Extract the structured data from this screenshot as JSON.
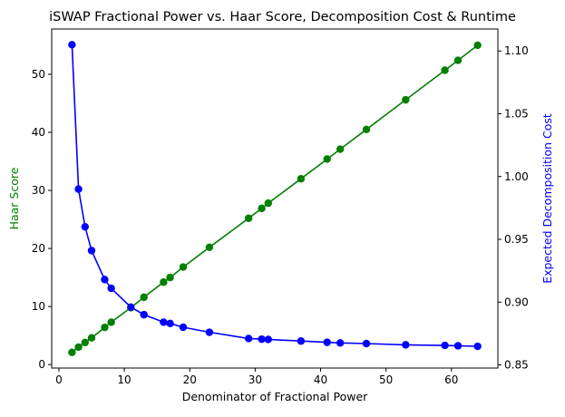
{
  "chart_data": {
    "type": "line",
    "title": "iSWAP Fractional Power vs. Haar Score, Decomposition Cost & Runtime",
    "xlabel": "Denominator of Fractional Power",
    "ylabel_left": "Haar Score",
    "ylabel_right": "Expected Decomposition Cost",
    "xlim": [
      -1.1,
      67.1
    ],
    "ylim_left": [
      -0.6,
      57.8
    ],
    "ylim_right": [
      0.8475,
      1.1175
    ],
    "x_ticks": [
      0,
      10,
      20,
      30,
      40,
      50,
      60
    ],
    "y_ticks_left": [
      0,
      10,
      20,
      30,
      40,
      50
    ],
    "y_ticks_right": [
      "0.85",
      "0.90",
      "0.95",
      "1.00",
      "1.05",
      "1.10"
    ],
    "grid": false,
    "colors": {
      "left": "#008000",
      "right": "#0000ff"
    },
    "x": [
      2,
      3,
      4,
      5,
      7,
      8,
      11,
      13,
      16,
      17,
      19,
      23,
      29,
      31,
      32,
      37,
      41,
      43,
      47,
      53,
      59,
      61,
      64
    ],
    "series": [
      {
        "axis": "left",
        "color": "#008000",
        "values": [
          2.1,
          3.0,
          3.8,
          4.6,
          6.4,
          7.3,
          9.8,
          11.6,
          14.2,
          15.0,
          16.8,
          20.2,
          25.2,
          26.9,
          27.8,
          32.0,
          35.4,
          37.1,
          40.5,
          45.6,
          50.7,
          52.4,
          55.0
        ]
      },
      {
        "axis": "right",
        "color": "#0000ff",
        "values": [
          1.105,
          0.99,
          0.96,
          0.941,
          0.918,
          0.911,
          0.896,
          0.89,
          0.884,
          0.883,
          0.88,
          0.876,
          0.871,
          0.8705,
          0.8703,
          0.869,
          0.868,
          0.8675,
          0.867,
          0.866,
          0.8655,
          0.8652,
          0.8648
        ]
      }
    ]
  }
}
